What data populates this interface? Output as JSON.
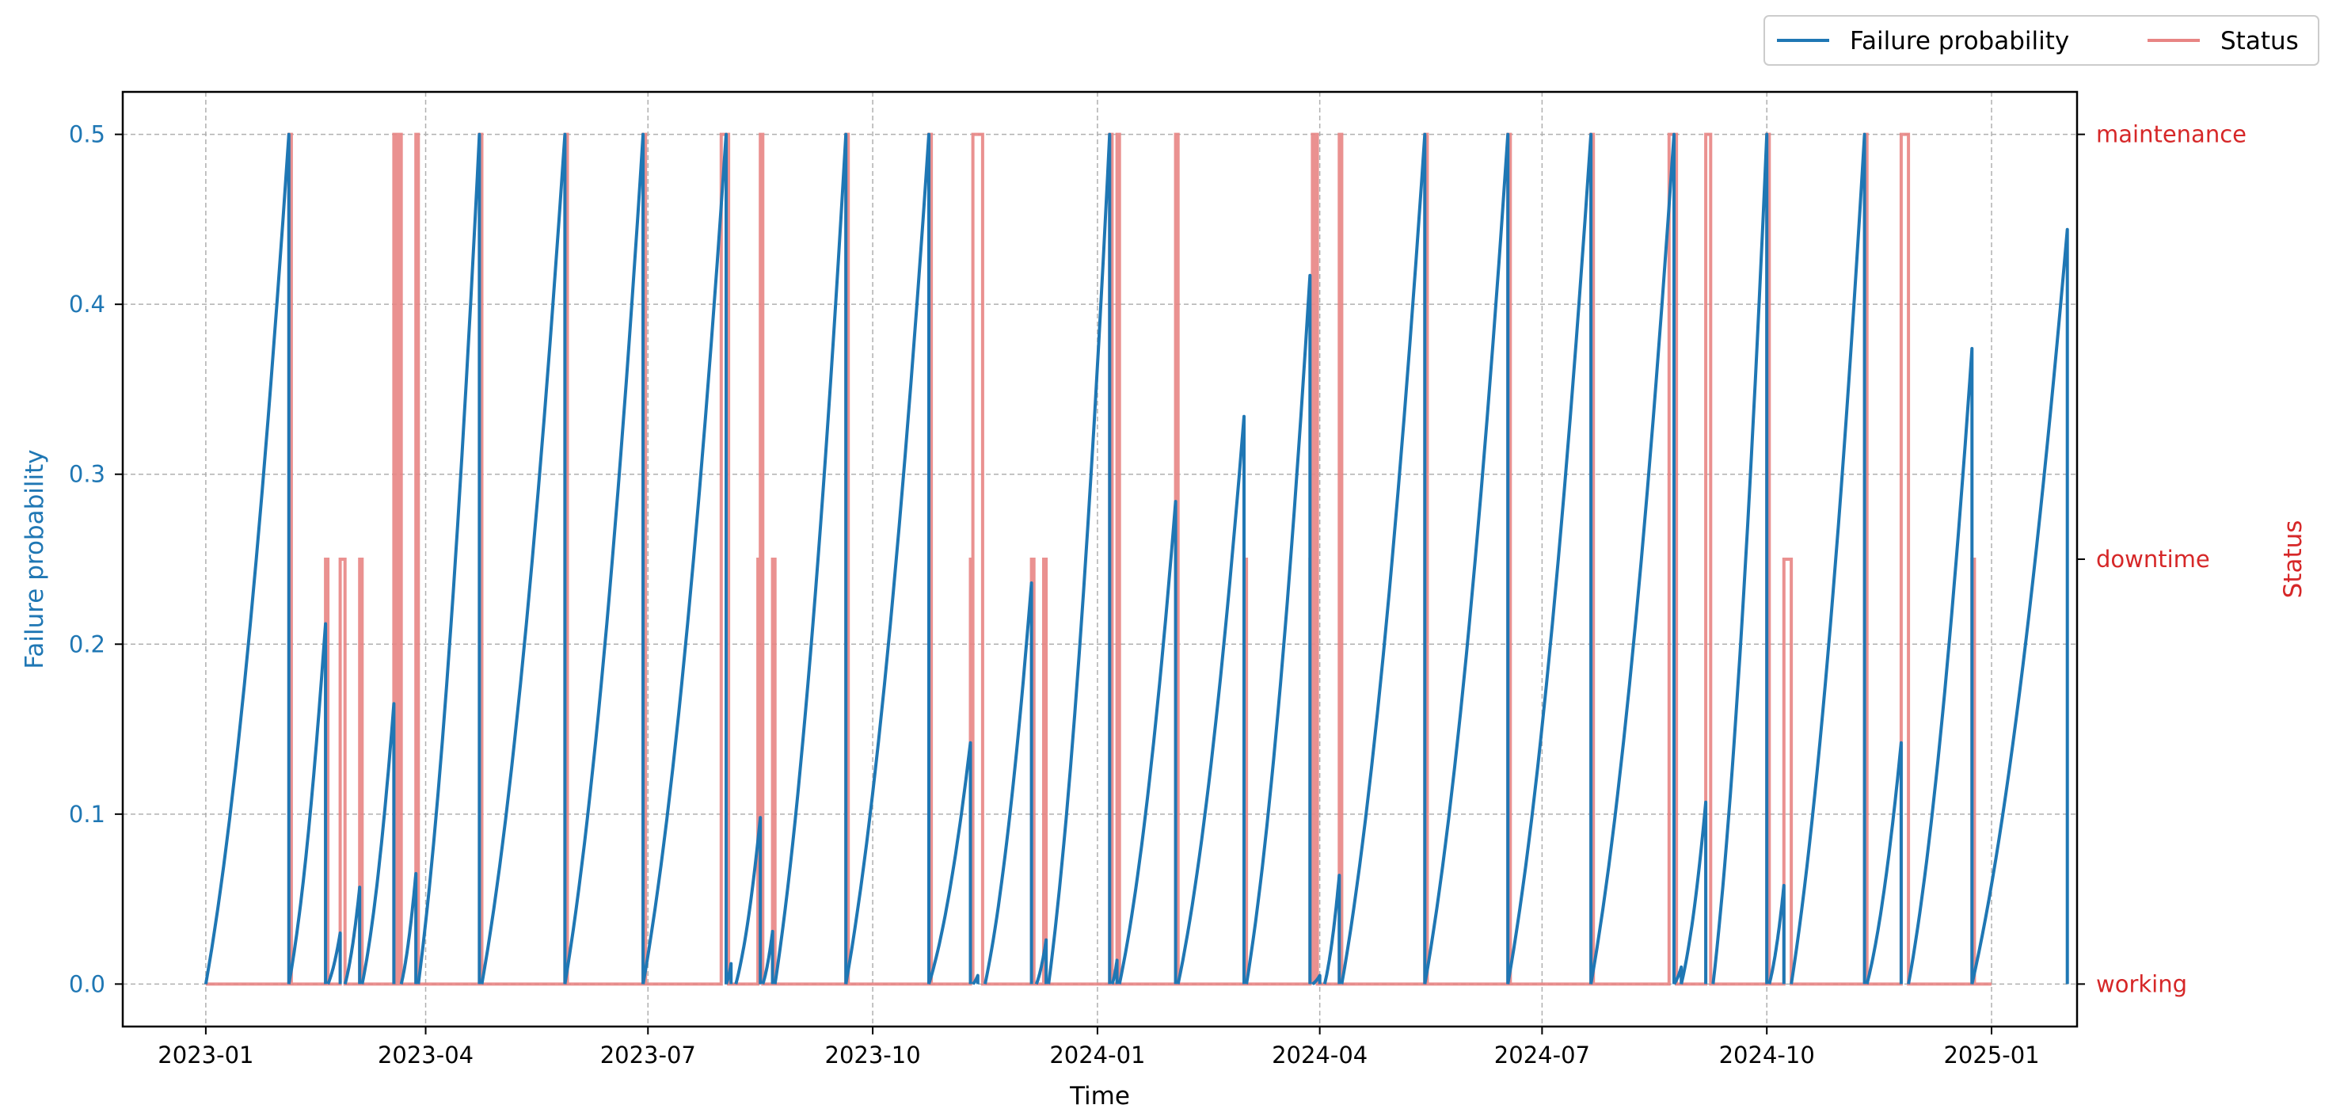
{
  "chart_data": {
    "type": "line",
    "xlabel": "Time",
    "ylabel_left": "Failure probability",
    "ylabel_right": "Status",
    "x_range": [
      "2022-11-28",
      "2025-02-05"
    ],
    "x_ticks": [
      "2023-01",
      "2023-04",
      "2023-07",
      "2023-10",
      "2024-01",
      "2024-04",
      "2024-07",
      "2024-10",
      "2025-01"
    ],
    "x_tick_dates": [
      "2023-01-01",
      "2023-04-01",
      "2023-07-01",
      "2023-10-01",
      "2024-01-01",
      "2024-04-01",
      "2024-07-01",
      "2024-10-01",
      "2025-01-01"
    ],
    "y_left_range": [
      -0.025,
      0.525
    ],
    "y_left_ticks": [
      "0.0",
      "0.1",
      "0.2",
      "0.3",
      "0.4",
      "0.5"
    ],
    "y_right_range": [
      -0.1,
      2.1
    ],
    "y_right_ticks": [
      "working",
      "downtime",
      "maintenance"
    ],
    "grid": true,
    "legend": {
      "placement": "above top-right",
      "entries": [
        "Failure probability",
        "Status"
      ]
    },
    "colors": {
      "probability": "#1f77b4",
      "status": "#e88584",
      "right_axis": "#d62728"
    },
    "series": [
      {
        "name": "Failure probability",
        "axis": "left",
        "cycles": [
          {
            "start": "2023-01-01",
            "end": "2023-02-04",
            "peak": 0.5
          },
          {
            "start": "2023-02-04",
            "end": "2023-02-19",
            "peak": 0.212
          },
          {
            "start": "2023-02-20",
            "end": "2023-02-25",
            "peak": 0.03
          },
          {
            "start": "2023-02-27",
            "end": "2023-03-05",
            "peak": 0.057
          },
          {
            "start": "2023-03-06",
            "end": "2023-03-19",
            "peak": 0.165
          },
          {
            "start": "2023-03-22",
            "end": "2023-03-28",
            "peak": 0.065
          },
          {
            "start": "2023-03-29",
            "end": "2023-04-23",
            "peak": 0.5
          },
          {
            "start": "2023-04-24",
            "end": "2023-05-28",
            "peak": 0.5
          },
          {
            "start": "2023-05-28",
            "end": "2023-06-29",
            "peak": 0.5
          },
          {
            "start": "2023-06-29",
            "end": "2023-08-02",
            "peak": 0.5
          },
          {
            "start": "2023-08-02",
            "end": "2023-08-04",
            "peak": 0.012
          },
          {
            "start": "2023-08-06",
            "end": "2023-08-16",
            "peak": 0.098
          },
          {
            "start": "2023-08-17",
            "end": "2023-08-21",
            "peak": 0.031
          },
          {
            "start": "2023-08-22",
            "end": "2023-09-20",
            "peak": 0.5
          },
          {
            "start": "2023-09-20",
            "end": "2023-10-24",
            "peak": 0.5
          },
          {
            "start": "2023-10-24",
            "end": "2023-11-10",
            "peak": 0.142
          },
          {
            "start": "2023-11-11",
            "end": "2023-11-13",
            "peak": 0.005
          },
          {
            "start": "2023-11-16",
            "end": "2023-12-05",
            "peak": 0.236
          },
          {
            "start": "2023-12-07",
            "end": "2023-12-11",
            "peak": 0.026
          },
          {
            "start": "2023-12-12",
            "end": "2024-01-06",
            "peak": 0.5
          },
          {
            "start": "2024-01-07",
            "end": "2024-01-09",
            "peak": 0.014
          },
          {
            "start": "2024-01-10",
            "end": "2024-02-02",
            "peak": 0.284
          },
          {
            "start": "2024-02-03",
            "end": "2024-03-01",
            "peak": 0.334
          },
          {
            "start": "2024-03-02",
            "end": "2024-03-28",
            "peak": 0.417
          },
          {
            "start": "2024-03-29",
            "end": "2024-04-01",
            "peak": 0.005
          },
          {
            "start": "2024-04-03",
            "end": "2024-04-09",
            "peak": 0.064
          },
          {
            "start": "2024-04-10",
            "end": "2024-05-14",
            "peak": 0.5
          },
          {
            "start": "2024-05-14",
            "end": "2024-06-17",
            "peak": 0.5
          },
          {
            "start": "2024-06-17",
            "end": "2024-07-21",
            "peak": 0.5
          },
          {
            "start": "2024-07-21",
            "end": "2024-08-24",
            "peak": 0.5
          },
          {
            "start": "2024-08-24",
            "end": "2024-08-27",
            "peak": 0.01
          },
          {
            "start": "2024-08-27",
            "end": "2024-09-06",
            "peak": 0.107
          },
          {
            "start": "2024-09-09",
            "end": "2024-10-01",
            "peak": 0.5
          },
          {
            "start": "2024-10-02",
            "end": "2024-10-08",
            "peak": 0.058
          },
          {
            "start": "2024-10-11",
            "end": "2024-11-10",
            "peak": 0.5
          },
          {
            "start": "2024-11-11",
            "end": "2024-11-25",
            "peak": 0.142
          },
          {
            "start": "2024-11-28",
            "end": "2024-12-24",
            "peak": 0.374
          },
          {
            "start": "2024-12-24",
            "end": "2025-02-01",
            "peak": 0.444
          }
        ]
      },
      {
        "name": "Status",
        "axis": "right",
        "levels": [
          "working",
          "downtime",
          "maintenance"
        ],
        "baseline": "working",
        "intervals": [
          {
            "start": "2023-02-04",
            "end": "2023-02-05",
            "level": "maintenance"
          },
          {
            "start": "2023-02-19",
            "end": "2023-02-20",
            "level": "downtime"
          },
          {
            "start": "2023-02-25",
            "end": "2023-02-27",
            "level": "downtime"
          },
          {
            "start": "2023-03-05",
            "end": "2023-03-06",
            "level": "downtime"
          },
          {
            "start": "2023-03-19",
            "end": "2023-03-20",
            "level": "maintenance"
          },
          {
            "start": "2023-03-20",
            "end": "2023-03-21",
            "level": "working"
          },
          {
            "start": "2023-03-21",
            "end": "2023-03-22",
            "level": "maintenance"
          },
          {
            "start": "2023-03-28",
            "end": "2023-03-29",
            "level": "maintenance"
          },
          {
            "start": "2023-04-23",
            "end": "2023-04-24",
            "level": "maintenance"
          },
          {
            "start": "2023-05-28",
            "end": "2023-05-29",
            "level": "maintenance"
          },
          {
            "start": "2023-06-29",
            "end": "2023-06-30",
            "level": "maintenance"
          },
          {
            "start": "2023-07-31",
            "end": "2023-08-02",
            "level": "maintenance"
          },
          {
            "start": "2023-08-02",
            "end": "2023-08-03",
            "level": "maintenance"
          },
          {
            "start": "2023-08-15",
            "end": "2023-08-16",
            "level": "downtime"
          },
          {
            "start": "2023-08-16",
            "end": "2023-08-17",
            "level": "maintenance"
          },
          {
            "start": "2023-08-21",
            "end": "2023-08-22",
            "level": "downtime"
          },
          {
            "start": "2023-09-20",
            "end": "2023-09-21",
            "level": "maintenance"
          },
          {
            "start": "2023-10-24",
            "end": "2023-10-25",
            "level": "maintenance"
          },
          {
            "start": "2023-11-10",
            "end": "2023-11-11",
            "level": "downtime"
          },
          {
            "start": "2023-11-11",
            "end": "2023-11-15",
            "level": "maintenance"
          },
          {
            "start": "2023-12-05",
            "end": "2023-12-06",
            "level": "downtime"
          },
          {
            "start": "2023-12-10",
            "end": "2023-12-11",
            "level": "downtime"
          },
          {
            "start": "2024-01-06",
            "end": "2024-01-07",
            "level": "maintenance"
          },
          {
            "start": "2024-01-09",
            "end": "2024-01-10",
            "level": "maintenance"
          },
          {
            "start": "2024-02-02",
            "end": "2024-02-03",
            "level": "maintenance"
          },
          {
            "start": "2024-03-01",
            "end": "2024-03-02",
            "level": "downtime"
          },
          {
            "start": "2024-03-28",
            "end": "2024-03-29",
            "level": "downtime"
          },
          {
            "start": "2024-03-29",
            "end": "2024-03-30",
            "level": "maintenance"
          },
          {
            "start": "2024-03-30",
            "end": "2024-03-31",
            "level": "maintenance"
          },
          {
            "start": "2024-04-09",
            "end": "2024-04-10",
            "level": "maintenance"
          },
          {
            "start": "2024-05-14",
            "end": "2024-05-15",
            "level": "maintenance"
          },
          {
            "start": "2024-06-17",
            "end": "2024-06-18",
            "level": "maintenance"
          },
          {
            "start": "2024-07-21",
            "end": "2024-07-22",
            "level": "maintenance"
          },
          {
            "start": "2024-08-22",
            "end": "2024-08-24",
            "level": "maintenance"
          },
          {
            "start": "2024-08-24",
            "end": "2024-08-25",
            "level": "maintenance"
          },
          {
            "start": "2024-09-06",
            "end": "2024-09-08",
            "level": "maintenance"
          },
          {
            "start": "2024-10-01",
            "end": "2024-10-02",
            "level": "maintenance"
          },
          {
            "start": "2024-10-08",
            "end": "2024-10-11",
            "level": "downtime"
          },
          {
            "start": "2024-11-10",
            "end": "2024-11-11",
            "level": "maintenance"
          },
          {
            "start": "2024-11-25",
            "end": "2024-11-28",
            "level": "maintenance"
          },
          {
            "start": "2024-12-24",
            "end": "2024-12-25",
            "level": "downtime"
          }
        ]
      }
    ]
  }
}
